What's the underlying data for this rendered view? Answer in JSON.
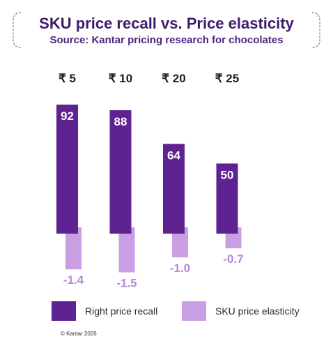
{
  "title": "SKU price recall vs. Price elasticity",
  "subtitle": "Source: Kantar pricing research for chocolates",
  "colors": {
    "recall": "#5f2291",
    "elasticity": "#c89fe3",
    "elasticity_label": "#b689d6",
    "title": "#3d1c6b",
    "border": "#5a6a8a"
  },
  "chart_data": {
    "type": "bar",
    "categories": [
      "₹ 5",
      "₹ 10",
      "₹ 20",
      "₹ 25"
    ],
    "series": [
      {
        "name": "Right price recall",
        "values": [
          92,
          88,
          64,
          50
        ],
        "labels": [
          "92",
          "88",
          "64",
          "50"
        ]
      },
      {
        "name": "SKU price elasticity",
        "values": [
          -1.4,
          -1.5,
          -1.0,
          -0.7
        ],
        "labels": [
          "-1.4",
          "-1.5",
          "-1.0",
          "-0.7"
        ]
      }
    ],
    "legend": "bottom",
    "grid": false
  },
  "copyright": "© Kantar 2026"
}
